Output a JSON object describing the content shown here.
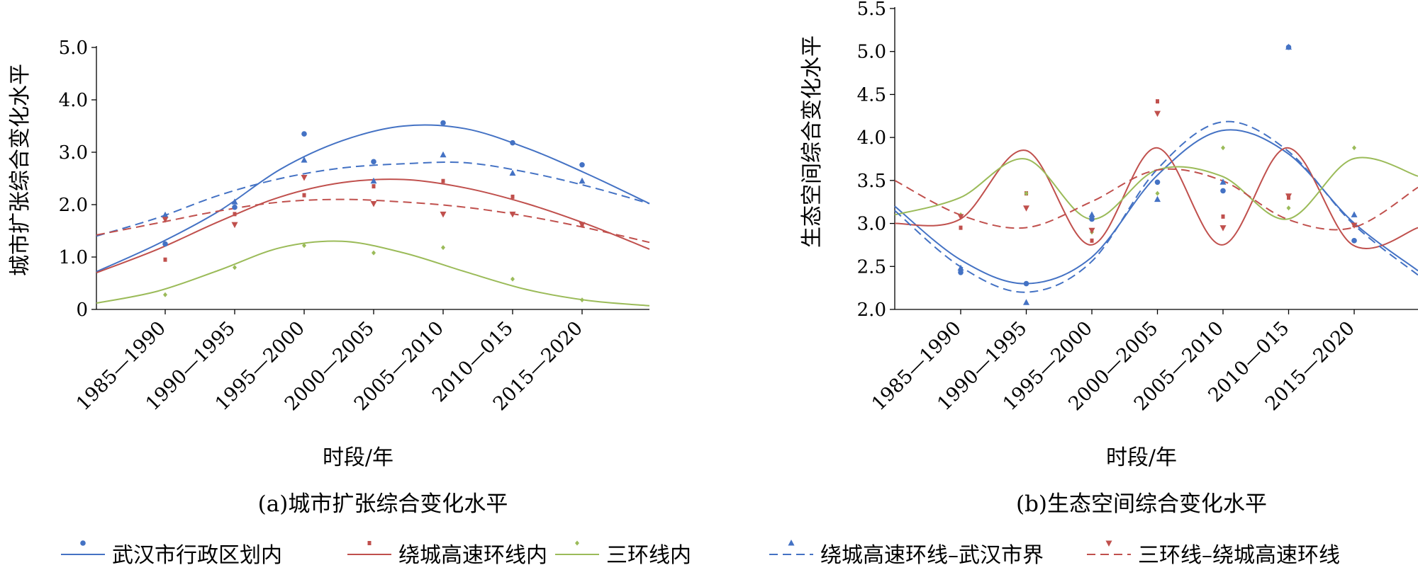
{
  "colors": {
    "series1": "#4472C4",
    "series2": "#C0504D",
    "series3": "#9BBB59",
    "series4": "#4472C4",
    "series5": "#C0504D"
  },
  "legend": {
    "placement": "bottom",
    "items": [
      {
        "label": "武汉市行政区划内",
        "line": "solid",
        "marker": "circle",
        "color": "#4472C4"
      },
      {
        "label": "绕城高速环线内",
        "line": "solid",
        "marker": "dash",
        "color": "#C0504D"
      },
      {
        "label": "三环线内",
        "line": "solid",
        "marker": "diamond",
        "color": "#9BBB59"
      },
      {
        "label": "绕城高速环线–武汉市界",
        "line": "dashed",
        "marker": "triangle-up",
        "color": "#4472C4"
      },
      {
        "label": "三环线–绕城高速环线",
        "line": "dashed",
        "marker": "triangle-down",
        "color": "#C0504D"
      }
    ]
  },
  "chart_data": [
    {
      "type": "scatter",
      "caption": "(a)城市扩张综合变化水平",
      "xlabel": "时段/年",
      "ylabel": "城市扩张综合变化水平",
      "categories": [
        "1985—1990",
        "1990—1995",
        "1995—2000",
        "2000—2005",
        "2005—2010",
        "2010—015",
        "2015—2020"
      ],
      "ylim": [
        0,
        5.0
      ],
      "yticks": [
        "0",
        "1.0",
        "2.0",
        "3.0",
        "4.0",
        "5.0"
      ],
      "grid": false,
      "series": [
        {
          "name": "武汉市行政区划内",
          "values": [
            1.25,
            1.95,
            3.35,
            2.82,
            3.56,
            3.18,
            2.76
          ],
          "trend": [
            0.72,
            1.25,
            1.88,
            2.68,
            3.22,
            3.5,
            3.45,
            3.08,
            2.58,
            2.02
          ]
        },
        {
          "name": "绕城高速环线内",
          "values": [
            0.95,
            1.82,
            2.18,
            2.35,
            2.45,
            2.15,
            1.62
          ],
          "trend": [
            0.7,
            1.15,
            1.68,
            2.15,
            2.42,
            2.48,
            2.32,
            2.02,
            1.62,
            1.15
          ]
        },
        {
          "name": "三环线内",
          "values": [
            0.28,
            0.8,
            1.22,
            1.08,
            1.18,
            0.58,
            0.18
          ],
          "trend": [
            0.12,
            0.35,
            0.75,
            1.18,
            1.3,
            1.08,
            0.72,
            0.38,
            0.17,
            0.07
          ]
        },
        {
          "name": "绕城高速环线–武汉市界",
          "values": [
            1.8,
            2.05,
            2.85,
            2.45,
            2.95,
            2.6,
            2.45
          ],
          "trend": [
            1.4,
            1.75,
            2.18,
            2.5,
            2.7,
            2.78,
            2.8,
            2.62,
            2.35,
            2.02
          ]
        },
        {
          "name": "三环线–绕城高速环线",
          "values": [
            1.72,
            1.62,
            2.52,
            2.02,
            1.82,
            1.82,
            1.62
          ],
          "trend": [
            1.42,
            1.65,
            1.88,
            2.05,
            2.1,
            2.05,
            1.95,
            1.78,
            1.55,
            1.28
          ]
        }
      ]
    },
    {
      "type": "scatter",
      "caption": "(b)生态空间综合变化水平",
      "xlabel": "时段/年",
      "ylabel": "生态空间综合变化水平",
      "categories": [
        "1985—1990",
        "1990—1995",
        "1995—2000",
        "2000—2005",
        "2005—2010",
        "2010—015",
        "2015—2020"
      ],
      "ylim": [
        2.0,
        5.5
      ],
      "yticks": [
        "2.0",
        "2.5",
        "3.0",
        "3.5",
        "4.0",
        "4.5",
        "5.0",
        "5.5"
      ],
      "grid": false,
      "series": [
        {
          "name": "武汉市行政区划内",
          "values": [
            2.43,
            2.3,
            3.05,
            3.48,
            3.38,
            5.05,
            2.8
          ],
          "trend": [
            3.2,
            2.58,
            2.3,
            2.6,
            3.55,
            4.08,
            3.82,
            3.02,
            2.45
          ]
        },
        {
          "name": "绕城高速环线内",
          "values": [
            2.95,
            3.35,
            2.8,
            4.42,
            3.08,
            3.3,
            2.98
          ],
          "trend": [
            3.0,
            3.05,
            3.85,
            2.75,
            3.88,
            2.75,
            3.88,
            2.75,
            2.95
          ]
        },
        {
          "name": "三环线内",
          "values": [
            3.1,
            3.35,
            2.9,
            3.35,
            3.88,
            3.18,
            3.88
          ],
          "trend": [
            3.1,
            3.3,
            3.75,
            3.05,
            3.62,
            3.55,
            3.05,
            3.75,
            3.55
          ]
        },
        {
          "name": "绕城高速环线–武汉市界",
          "values": [
            2.48,
            2.08,
            3.1,
            3.28,
            3.48,
            5.05,
            3.1
          ],
          "trend": [
            3.15,
            2.5,
            2.2,
            2.55,
            3.62,
            4.18,
            3.85,
            3.0,
            2.4
          ]
        },
        {
          "name": "三环线–绕城高速环线",
          "values": [
            3.08,
            3.18,
            2.92,
            4.28,
            2.95,
            3.32,
            2.98
          ],
          "trend": [
            3.5,
            3.1,
            2.95,
            3.25,
            3.62,
            3.5,
            3.05,
            2.95,
            3.42
          ]
        }
      ]
    }
  ]
}
